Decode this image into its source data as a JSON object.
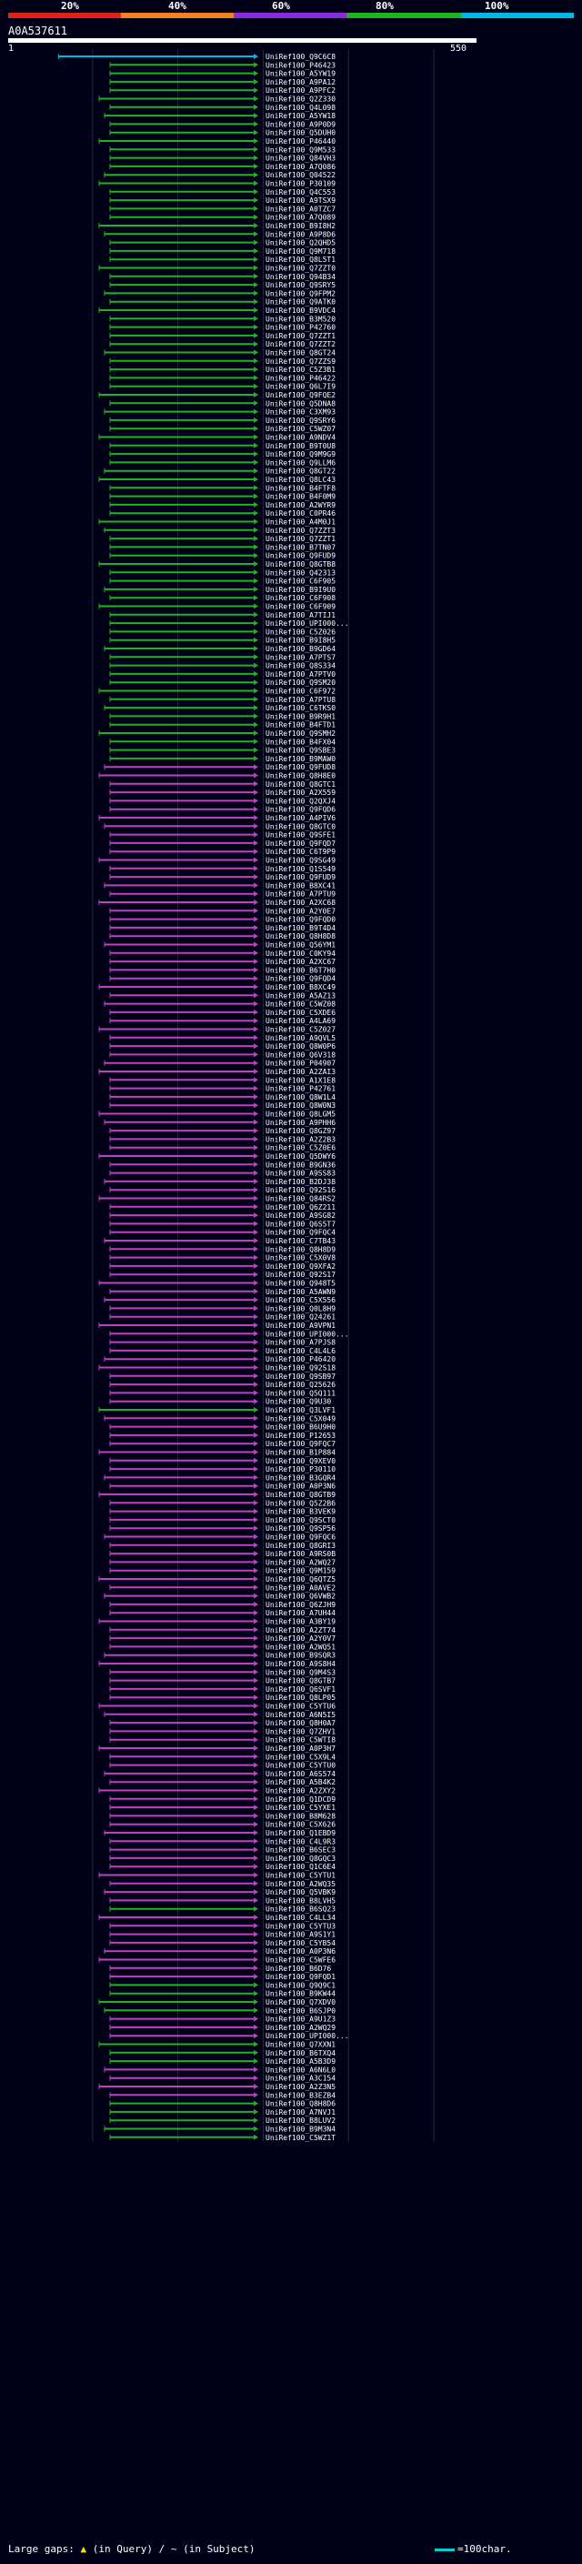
{
  "scale": {
    "labels": [
      "20%",
      "40%",
      "60%",
      "80%",
      "100%"
    ],
    "colors": [
      "#e0201a",
      "#f08020",
      "#8a2be2",
      "#1fb31f",
      "#00b8e6"
    ]
  },
  "query": {
    "id": "A0A537611",
    "start": "1",
    "end": "550"
  },
  "legend": {
    "text1": "Large gaps: ",
    "text2": " (in Query) / ",
    "text3": "~ (in Subject)",
    "line_label": "=100char."
  },
  "chart_data": {
    "type": "alignment-hits",
    "title": "A0A537611",
    "query_length": 550,
    "xlim": [
      1,
      550
    ],
    "colors": {
      "cyan": "#00b8e6",
      "green": "#1fb31f",
      "purple": "#c040c0"
    },
    "rows": [
      [
        "UniRef100_Q9C6C8",
        "c",
        76
      ],
      [
        "UniRef100_P46423",
        "g",
        130
      ],
      [
        "UniRef100_A5YW19",
        "g",
        130
      ],
      [
        "UniRef100_A9PA12",
        "g",
        130
      ],
      [
        "UniRef100_A9PFC2",
        "g",
        130
      ],
      [
        "UniRef100_Q2Z330",
        "g",
        130
      ],
      [
        "UniRef100_Q4L098",
        "g",
        130
      ],
      [
        "UniRef100_A5YW18",
        "g",
        130
      ],
      [
        "UniRef100_A9P0D9",
        "g",
        130
      ],
      [
        "UniRef100_Q5DUH0",
        "g",
        130
      ],
      [
        "UniRef100_P46440",
        "g",
        130
      ],
      [
        "UniRef100_Q9M533",
        "g",
        130
      ],
      [
        "UniRef100_Q84VH3",
        "g",
        130
      ],
      [
        "UniRef100_A7Q086",
        "g",
        130
      ],
      [
        "UniRef100_Q04522",
        "g",
        130
      ],
      [
        "UniRef100_P30109",
        "g",
        130
      ],
      [
        "UniRef100_Q4C553",
        "g",
        130
      ],
      [
        "UniRef100_A9TSX9",
        "g",
        130
      ],
      [
        "UniRef100_A0TZC7",
        "g",
        130
      ],
      [
        "UniRef100_A7Q089",
        "g",
        130
      ],
      [
        "UniRef100_B9I8H2",
        "g",
        130
      ],
      [
        "UniRef100_A9P8D6",
        "g",
        130
      ],
      [
        "UniRef100_Q2QHD5",
        "g",
        130
      ],
      [
        "UniRef100_Q9M718",
        "g",
        130
      ],
      [
        "UniRef100_Q8L5T1",
        "g",
        130
      ],
      [
        "UniRef100_Q7ZZT0",
        "g",
        130
      ],
      [
        "UniRef100_Q94B34",
        "g",
        130
      ],
      [
        "UniRef100_Q9SRY5",
        "g",
        130
      ],
      [
        "UniRef100_Q9FPM2",
        "g",
        130
      ],
      [
        "UniRef100_Q9ATK0",
        "g",
        130
      ],
      [
        "UniRef100_B9VDC4",
        "g",
        130
      ],
      [
        "UniRef100_B3M520",
        "g",
        130
      ],
      [
        "UniRef100_P42760",
        "g",
        130
      ],
      [
        "UniRef100_Q7ZZT1",
        "g",
        130
      ],
      [
        "UniRef100_Q7ZZT2",
        "g",
        130
      ],
      [
        "UniRef100_Q8GT24",
        "g",
        130
      ],
      [
        "UniRef100_Q7ZZS9",
        "g",
        130
      ],
      [
        "UniRef100_C5Z3B1",
        "g",
        130
      ],
      [
        "UniRef100_P46422",
        "g",
        130
      ],
      [
        "UniRef100_Q6L7I9",
        "g",
        130
      ],
      [
        "UniRef100_Q9FQE2",
        "g",
        130
      ],
      [
        "UniRef100_Q5DNA8",
        "g",
        130
      ],
      [
        "UniRef100_C3XM93",
        "g",
        130
      ],
      [
        "UniRef100_Q9SRY6",
        "g",
        130
      ],
      [
        "UniRef100_C5WZ07",
        "g",
        130
      ],
      [
        "UniRef100_A9NDV4",
        "g",
        130
      ],
      [
        "UniRef100_B9T0U8",
        "g",
        130
      ],
      [
        "UniRef100_Q9M9G9",
        "g",
        130
      ],
      [
        "UniRef100_Q9LLM6",
        "g",
        130
      ],
      [
        "UniRef100_Q8GT22",
        "g",
        130
      ],
      [
        "UniRef100_Q8LC43",
        "g",
        130
      ],
      [
        "UniRef100_B4FTF8",
        "g",
        130
      ],
      [
        "UniRef100_B4F0M9",
        "g",
        130
      ],
      [
        "UniRef100_A2WYR9",
        "g",
        130
      ],
      [
        "UniRef100_C0PR46",
        "g",
        130
      ],
      [
        "UniRef100_A4M0J1",
        "g",
        130
      ],
      [
        "UniRef100_Q7ZZT3",
        "g",
        130
      ],
      [
        "UniRef100_Q7ZZT1",
        "g",
        130
      ],
      [
        "UniRef100_B7TN07",
        "g",
        130
      ],
      [
        "UniRef100_Q9FUD9",
        "g",
        130
      ],
      [
        "UniRef100_Q8GTB8",
        "g",
        130
      ],
      [
        "UniRef100_Q42313",
        "g",
        130
      ],
      [
        "UniRef100_C6F905",
        "g",
        130
      ],
      [
        "UniRef100_B9I9U0",
        "g",
        130
      ],
      [
        "UniRef100_C6F908",
        "g",
        130
      ],
      [
        "UniRef100_C6F909",
        "g",
        130
      ],
      [
        "UniRef100_A7TIJ1",
        "g",
        130
      ],
      [
        "UniRef100_UPI000...",
        "g",
        130
      ],
      [
        "UniRef100_C5Z026",
        "g",
        130
      ],
      [
        "UniRef100_B9I8H5",
        "g",
        130
      ],
      [
        "UniRef100_B9GD64",
        "g",
        130
      ],
      [
        "UniRef100_A7PTS7",
        "g",
        130
      ],
      [
        "UniRef100_Q8S334",
        "g",
        130
      ],
      [
        "UniRef100_A7PTV0",
        "g",
        130
      ],
      [
        "UniRef100_Q9SM20",
        "g",
        130
      ],
      [
        "UniRef100_C6F972",
        "g",
        130
      ],
      [
        "UniRef100_A7PTU8",
        "g",
        130
      ],
      [
        "UniRef100_C6TKS0",
        "g",
        130
      ],
      [
        "UniRef100_B9R9H1",
        "g",
        130
      ],
      [
        "UniRef100_B4FTD1",
        "g",
        130
      ],
      [
        "UniRef100_Q9SMH2",
        "g",
        130
      ],
      [
        "UniRef100_B4FX04",
        "g",
        130
      ],
      [
        "UniRef100_Q9SBE3",
        "g",
        130
      ],
      [
        "UniRef100_B9MAW0",
        "g",
        130
      ],
      [
        "UniRef100_Q9FUD8",
        "p",
        130
      ],
      [
        "UniRef100_Q8H8E0",
        "p",
        130
      ],
      [
        "UniRef100_Q8GTC1",
        "p",
        130
      ],
      [
        "UniRef100_A2X559",
        "p",
        130
      ],
      [
        "UniRef100_Q2QXJ4",
        "p",
        130
      ],
      [
        "UniRef100_Q9FQD6",
        "p",
        130
      ],
      [
        "UniRef100_A4PIV6",
        "p",
        130
      ],
      [
        "UniRef100_Q8GTC0",
        "p",
        130
      ],
      [
        "UniRef100_Q9SFE1",
        "p",
        130
      ],
      [
        "UniRef100_Q9FQD7",
        "p",
        130
      ],
      [
        "UniRef100_C6T9P9",
        "p",
        130
      ],
      [
        "UniRef100_Q9SG49",
        "p",
        130
      ],
      [
        "UniRef100_Q1S549",
        "p",
        130
      ],
      [
        "UniRef100_Q9FUD9",
        "p",
        130
      ],
      [
        "UniRef100_B8XC41",
        "p",
        130
      ],
      [
        "UniRef100_A7PTU9",
        "p",
        130
      ],
      [
        "UniRef100_A2XC68",
        "p",
        130
      ],
      [
        "UniRef100_A2Y0E7",
        "p",
        130
      ],
      [
        "UniRef100_Q9FQD0",
        "p",
        130
      ],
      [
        "UniRef100_B9T4D4",
        "p",
        130
      ],
      [
        "UniRef100_Q8H8D8",
        "p",
        130
      ],
      [
        "UniRef100_Q56YM1",
        "p",
        130
      ],
      [
        "UniRef100_C0KY94",
        "p",
        130
      ],
      [
        "UniRef100_A2XC67",
        "p",
        130
      ],
      [
        "UniRef100_B6T7H0",
        "p",
        130
      ],
      [
        "UniRef100_Q9FQD4",
        "p",
        130
      ],
      [
        "UniRef100_B8XC49",
        "p",
        130
      ],
      [
        "UniRef100_A5AZ13",
        "p",
        130
      ],
      [
        "UniRef100_C5WZ08",
        "p",
        130
      ],
      [
        "UniRef100_C5XDE6",
        "p",
        130
      ],
      [
        "UniRef100_A4LA69",
        "p",
        130
      ],
      [
        "UniRef100_C5Z027",
        "p",
        130
      ],
      [
        "UniRef100_A9QVL5",
        "p",
        130
      ],
      [
        "UniRef100_Q8W0P6",
        "p",
        130
      ],
      [
        "UniRef100_Q6V318",
        "p",
        130
      ],
      [
        "UniRef100_P04907",
        "p",
        130
      ],
      [
        "UniRef100_A2ZAI3",
        "p",
        130
      ],
      [
        "UniRef100_A1X1E8",
        "p",
        130
      ],
      [
        "UniRef100_P42761",
        "p",
        130
      ],
      [
        "UniRef100_Q8W1L4",
        "p",
        130
      ],
      [
        "UniRef100_Q8W0N3",
        "p",
        130
      ],
      [
        "UniRef100_Q8LGM5",
        "p",
        130
      ],
      [
        "UniRef100_A9PHH6",
        "p",
        130
      ],
      [
        "UniRef100_Q8GZ97",
        "p",
        130
      ],
      [
        "UniRef100_A2Z2B3",
        "p",
        130
      ],
      [
        "UniRef100_C5Z0E6",
        "p",
        130
      ],
      [
        "UniRef100_Q5DWY6",
        "p",
        130
      ],
      [
        "UniRef100_B9GN36",
        "p",
        130
      ],
      [
        "UniRef100_A9SS83",
        "p",
        130
      ],
      [
        "UniRef100_B2DJ38",
        "p",
        130
      ],
      [
        "UniRef100_Q92S16",
        "p",
        130
      ],
      [
        "UniRef100_Q84RS2",
        "p",
        130
      ],
      [
        "UniRef100_Q6Z211",
        "p",
        130
      ],
      [
        "UniRef100_A9SG82",
        "p",
        130
      ],
      [
        "UniRef100_Q6S5T7",
        "p",
        130
      ],
      [
        "UniRef100_Q9FQC4",
        "p",
        130
      ],
      [
        "UniRef100_C7TB43",
        "p",
        130
      ],
      [
        "UniRef100_Q8H8D9",
        "p",
        130
      ],
      [
        "UniRef100_C5X0V8",
        "p",
        130
      ],
      [
        "UniRef100_Q9XFA2",
        "p",
        130
      ],
      [
        "UniRef100_Q92S17",
        "p",
        130
      ],
      [
        "UniRef100_Q948T5",
        "p",
        130
      ],
      [
        "UniRef100_A5AWN9",
        "p",
        130
      ],
      [
        "UniRef100_C5X556",
        "p",
        130
      ],
      [
        "UniRef100_Q0L8H9",
        "p",
        130
      ],
      [
        "UniRef100_Q24261",
        "p",
        130
      ],
      [
        "UniRef100_A9VPN1",
        "p",
        130
      ],
      [
        "UniRef100_UPI000...",
        "p",
        130
      ],
      [
        "UniRef100_A7PJS8",
        "p",
        130
      ],
      [
        "UniRef100_C4L4L6",
        "p",
        130
      ],
      [
        "UniRef100_P46420",
        "p",
        130
      ],
      [
        "UniRef100_Q92S18",
        "p",
        130
      ],
      [
        "UniRef100_Q9SB97",
        "p",
        130
      ],
      [
        "UniRef100_Q25626",
        "p",
        130
      ],
      [
        "UniRef100_Q5Q111",
        "p",
        130
      ],
      [
        "UniRef100_Q9U30",
        "p",
        130
      ],
      [
        "UniRef100_Q3LVF1",
        "g",
        130
      ],
      [
        "UniRef100_C5X049",
        "p",
        130
      ],
      [
        "UniRef100_B6U9H0",
        "p",
        130
      ],
      [
        "UniRef100_P12653",
        "p",
        130
      ],
      [
        "UniRef100_Q9FQC7",
        "p",
        130
      ],
      [
        "UniRef100_B1P884",
        "p",
        130
      ],
      [
        "UniRef100_Q9XEV0",
        "p",
        130
      ],
      [
        "UniRef100_P30110",
        "p",
        130
      ],
      [
        "UniRef100_B3GQR4",
        "p",
        130
      ],
      [
        "UniRef100_A0P3N6",
        "p",
        130
      ],
      [
        "UniRef100_Q8GTB9",
        "p",
        130
      ],
      [
        "UniRef100_Q5Z2B6",
        "p",
        130
      ],
      [
        "UniRef100_B3VEK9",
        "p",
        130
      ],
      [
        "UniRef100_Q9SCT0",
        "p",
        130
      ],
      [
        "UniRef100_Q9SP56",
        "p",
        130
      ],
      [
        "UniRef100_Q9FQC6",
        "p",
        130
      ],
      [
        "UniRef100_Q8GRI3",
        "p",
        130
      ],
      [
        "UniRef100_A9RS0B",
        "p",
        130
      ],
      [
        "UniRef100_A2WQ27",
        "p",
        130
      ],
      [
        "UniRef100_Q9M159",
        "p",
        130
      ],
      [
        "UniRef100_Q6QTZ5",
        "p",
        130
      ],
      [
        "UniRef100_A0AVE2",
        "p",
        130
      ],
      [
        "UniRef100_Q6VWB2",
        "p",
        130
      ],
      [
        "UniRef100_Q6ZJH9",
        "p",
        130
      ],
      [
        "UniRef100_A7UH44",
        "p",
        130
      ],
      [
        "UniRef100_A3BY19",
        "p",
        130
      ],
      [
        "UniRef100_A2ZT74",
        "p",
        130
      ],
      [
        "UniRef100_A2Y0V7",
        "p",
        130
      ],
      [
        "UniRef100_A2WQ51",
        "p",
        130
      ],
      [
        "UniRef100_B9SQR3",
        "p",
        130
      ],
      [
        "UniRef100_A9S8H4",
        "p",
        130
      ],
      [
        "UniRef100_Q9M4S3",
        "p",
        130
      ],
      [
        "UniRef100_Q8GTB7",
        "p",
        130
      ],
      [
        "UniRef100_Q6SVF1",
        "p",
        130
      ],
      [
        "UniRef100_Q8LP05",
        "p",
        130
      ],
      [
        "UniRef100_C5YTU6",
        "p",
        130
      ],
      [
        "UniRef100_A6N5I5",
        "p",
        130
      ],
      [
        "UniRef100_Q8H0A7",
        "p",
        130
      ],
      [
        "UniRef100_Q7ZHV1",
        "p",
        130
      ],
      [
        "UniRef100_C5WTI8",
        "p",
        130
      ],
      [
        "UniRef100_A0P3H7",
        "p",
        130
      ],
      [
        "UniRef100_C5X9L4",
        "p",
        130
      ],
      [
        "UniRef100_C5YTU0",
        "p",
        130
      ],
      [
        "UniRef100_A6S574",
        "p",
        130
      ],
      [
        "UniRef100_A5B4K2",
        "p",
        130
      ],
      [
        "UniRef100_A2ZXY2",
        "p",
        130
      ],
      [
        "UniRef100_Q1DCD9",
        "p",
        130
      ],
      [
        "UniRef100_C5YXE1",
        "p",
        130
      ],
      [
        "UniRef100_B8M628",
        "p",
        130
      ],
      [
        "UniRef100_C5X626",
        "p",
        130
      ],
      [
        "UniRef100_Q1EBD9",
        "p",
        130
      ],
      [
        "UniRef100_C4L9R3",
        "p",
        130
      ],
      [
        "UniRef100_B6SEC3",
        "p",
        130
      ],
      [
        "UniRef100_Q8GQC3",
        "p",
        130
      ],
      [
        "UniRef100_Q1C6E4",
        "p",
        130
      ],
      [
        "UniRef100_C5YTU1",
        "p",
        130
      ],
      [
        "UniRef100_A2WQ35",
        "p",
        130
      ],
      [
        "UniRef100_Q5VBK9",
        "p",
        130
      ],
      [
        "UniRef100_B8LVH5",
        "p",
        130
      ],
      [
        "UniRef100_B6SQ23",
        "g",
        130
      ],
      [
        "UniRef100_C4LL34",
        "p",
        130
      ],
      [
        "UniRef100_C5YTU3",
        "p",
        130
      ],
      [
        "UniRef100_A9S1Y1",
        "p",
        130
      ],
      [
        "UniRef100_C5YB54",
        "p",
        130
      ],
      [
        "UniRef100_A0P3N6",
        "p",
        130
      ],
      [
        "UniRef100_C5WFE6",
        "p",
        130
      ],
      [
        "UniRef100_B6D76",
        "p",
        130
      ],
      [
        "UniRef100_Q9FQD1",
        "p",
        130
      ],
      [
        "UniRef100_Q9Q9C1",
        "g",
        130
      ],
      [
        "UniRef100_B9KW44",
        "g",
        130
      ],
      [
        "UniRef100_Q7XDV0",
        "g",
        130
      ],
      [
        "UniRef100_B6SJP0",
        "g",
        130
      ],
      [
        "UniRef100_A9U1Z3",
        "p",
        130
      ],
      [
        "UniRef100_A2WQ29",
        "p",
        130
      ],
      [
        "UniRef100_UPI000...",
        "p",
        130
      ],
      [
        "UniRef100_Q7XXN1",
        "g",
        130
      ],
      [
        "UniRef100_B6TXQ4",
        "g",
        130
      ],
      [
        "UniRef100_A5B3D9",
        "g",
        130
      ],
      [
        "UniRef100_A6N6L0",
        "p",
        130
      ],
      [
        "UniRef100_A3C154",
        "p",
        130
      ],
      [
        "UniRef100_A2Z3N5",
        "p",
        130
      ],
      [
        "UniRef100_B3EZB4",
        "p",
        130
      ],
      [
        "UniRef100_Q8H8D6",
        "g",
        130
      ],
      [
        "UniRef100_A7NVJ1",
        "g",
        130
      ],
      [
        "UniRef100_B8LUV2",
        "g",
        130
      ],
      [
        "UniRef100_B9M3N4",
        "g",
        130
      ],
      [
        "UniRef100_C5WZ1T",
        "g",
        130
      ]
    ]
  }
}
